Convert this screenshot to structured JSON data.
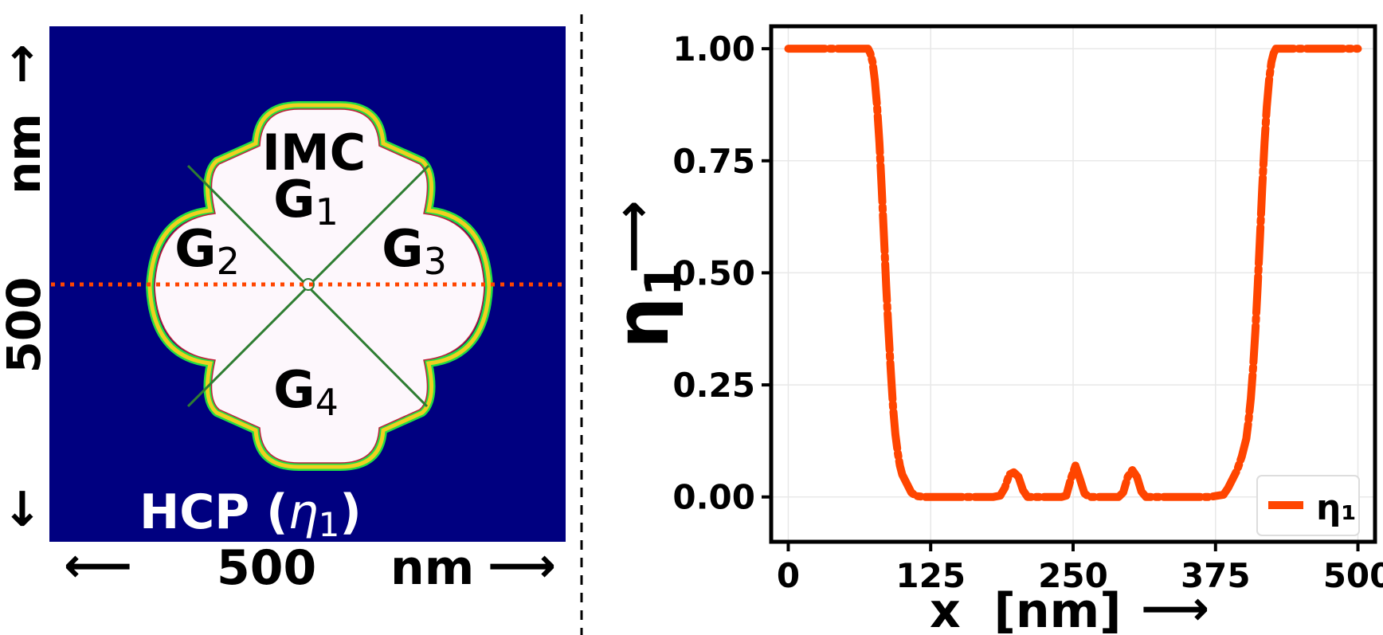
{
  "left_panel": {
    "grain_labels": {
      "imc": "IMC",
      "g1": {
        "base": "G",
        "sub": "1"
      },
      "g2": {
        "base": "G",
        "sub": "2"
      },
      "g3": {
        "base": "G",
        "sub": "3"
      },
      "g4": {
        "base": "G",
        "sub": "4"
      }
    },
    "phase_label": {
      "prefix": "HCP (",
      "symbol": "η",
      "sub": "1",
      "suffix": ")"
    },
    "x_axis": {
      "value": "500",
      "unit": "nm"
    },
    "y_axis": {
      "value": "500",
      "unit": "nm"
    },
    "colors": {
      "background": "#000080",
      "particle": "#fdf7fc",
      "cut_line": "#ff4500"
    }
  },
  "chart_data": {
    "type": "line",
    "xlabel": "x  [nm]",
    "ylabel": "η1",
    "ylabel_symbol": "η",
    "ylabel_sub": "1",
    "xlim": [
      -15,
      515
    ],
    "ylim": [
      -0.1,
      1.05
    ],
    "xticks": [
      0,
      125,
      250,
      375,
      500
    ],
    "xtick_labels": [
      "0",
      "125",
      "250",
      "375",
      "500"
    ],
    "yticks": [
      0,
      0.25,
      0.5,
      0.75,
      1.0
    ],
    "ytick_labels": [
      "0.00",
      "0.25",
      "0.50",
      "0.75",
      "1.00"
    ],
    "grid": true,
    "legend": {
      "position": "lower-right",
      "entries": [
        "η₁"
      ]
    },
    "series": [
      {
        "name": "η₁",
        "color": "#ff4500",
        "style": "dashed",
        "x": [
          0,
          20,
          40,
          60,
          70,
          72,
          74,
          76,
          78,
          80,
          82,
          84,
          86,
          88,
          90,
          92,
          94,
          96,
          98,
          100,
          104,
          108,
          112,
          120,
          150,
          180,
          186,
          190,
          194,
          198,
          202,
          206,
          210,
          240,
          244,
          248,
          252,
          256,
          260,
          264,
          290,
          294,
          298,
          302,
          306,
          310,
          314,
          320,
          350,
          370,
          382,
          386,
          390,
          394,
          398,
          402,
          404,
          406,
          408,
          410,
          412,
          414,
          416,
          418,
          420,
          422,
          424,
          426,
          428,
          430,
          450,
          470,
          490,
          500
        ],
        "y": [
          1.0,
          1.0,
          1.0,
          1.0,
          1.0,
          0.99,
          0.97,
          0.93,
          0.87,
          0.79,
          0.69,
          0.58,
          0.47,
          0.37,
          0.28,
          0.2,
          0.14,
          0.1,
          0.07,
          0.05,
          0.03,
          0.01,
          0.002,
          0.0,
          0.0,
          0.0,
          0.003,
          0.02,
          0.05,
          0.055,
          0.045,
          0.015,
          0.0,
          0.0,
          0.003,
          0.04,
          0.07,
          0.04,
          0.008,
          0.0,
          0.0,
          0.01,
          0.045,
          0.06,
          0.045,
          0.012,
          0.0,
          0.0,
          0.0,
          0.0,
          0.005,
          0.02,
          0.04,
          0.06,
          0.09,
          0.13,
          0.17,
          0.22,
          0.29,
          0.37,
          0.47,
          0.58,
          0.69,
          0.79,
          0.87,
          0.93,
          0.97,
          0.99,
          1.0,
          1.0,
          1.0,
          1.0,
          1.0,
          1.0
        ]
      }
    ]
  }
}
